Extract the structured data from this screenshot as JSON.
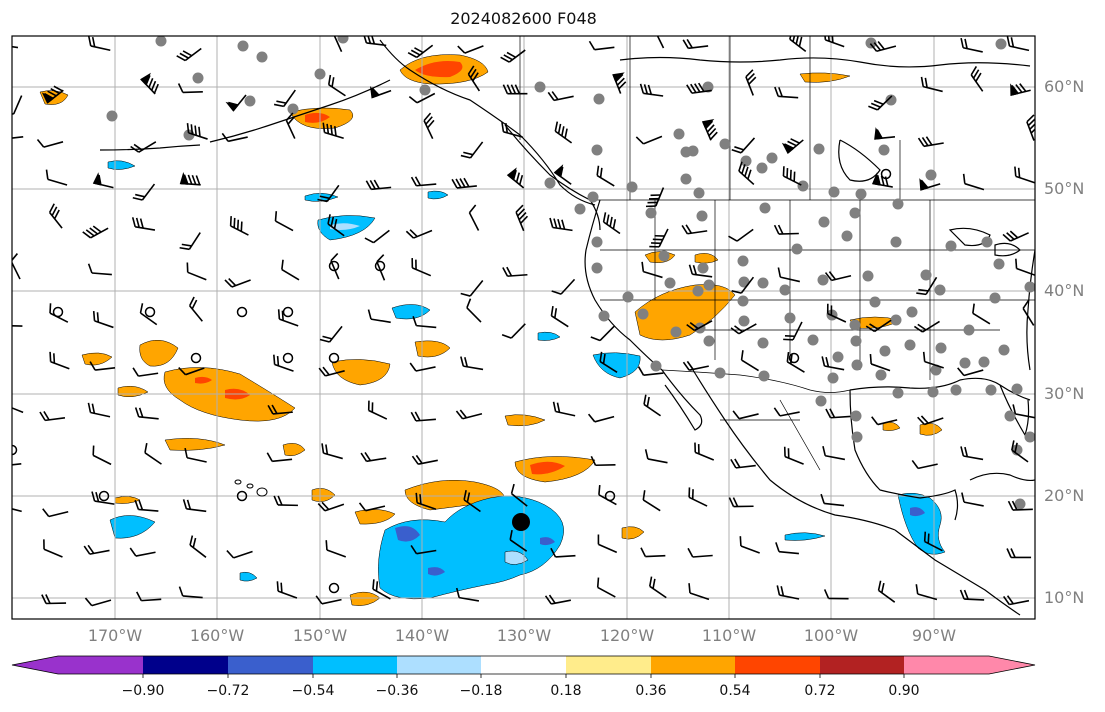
{
  "title": "2024082600 F048",
  "lat_labels": [
    "60°N",
    "50°N",
    "40°N",
    "30°N",
    "20°N",
    "10°N"
  ],
  "lon_labels": [
    "170°W",
    "160°W",
    "150°W",
    "140°W",
    "130°W",
    "120°W",
    "110°W",
    "100°W",
    "90°W"
  ],
  "colorbar": {
    "ticks": [
      "−0.90",
      "−0.72",
      "−0.54",
      "−0.36",
      "−0.18",
      "0.18",
      "0.36",
      "0.54",
      "0.72",
      "0.90"
    ],
    "colors": [
      "#9932CC",
      "#00008B",
      "#3A5FCD",
      "#00BFFF",
      "#ADDFFF",
      "#FFFFFF",
      "#FFEC8B",
      "#FFA500",
      "#FF4500",
      "#B22222",
      "#FF88AA"
    ]
  },
  "colors": {
    "frame": "#000000",
    "grid": "#b0b0b0",
    "station": "#808080",
    "coast": "#000000"
  }
}
